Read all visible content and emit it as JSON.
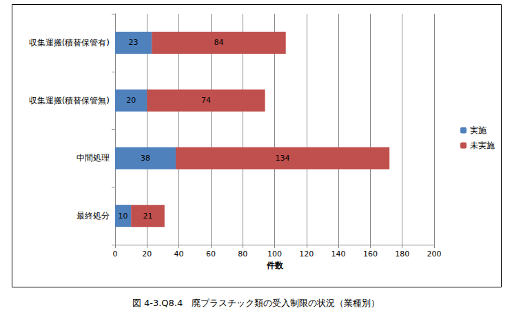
{
  "chart_data": {
    "type": "bar",
    "title": "図 4-3.Q8.4　廃プラスチック類の受入制限の状況（業種別）",
    "x_label": "件数",
    "categories": [
      "収集運搬(積替保管有)",
      "収集運搬(積替保管無)",
      "中間処理",
      "最終処分"
    ],
    "series": [
      {
        "name": "実施",
        "color": "#4f81bd",
        "values": [
          23,
          20,
          38,
          10
        ]
      },
      {
        "name": "未実施",
        "color": "#c0504d",
        "values": [
          84,
          74,
          134,
          21
        ]
      }
    ],
    "xlim": [
      0,
      200
    ],
    "xticks": [
      0,
      20,
      40,
      60,
      80,
      100,
      120,
      140,
      160,
      180,
      200
    ],
    "orientation": "horizontal",
    "stacked": true,
    "data_labels": true,
    "grid": true,
    "legend": "right"
  }
}
